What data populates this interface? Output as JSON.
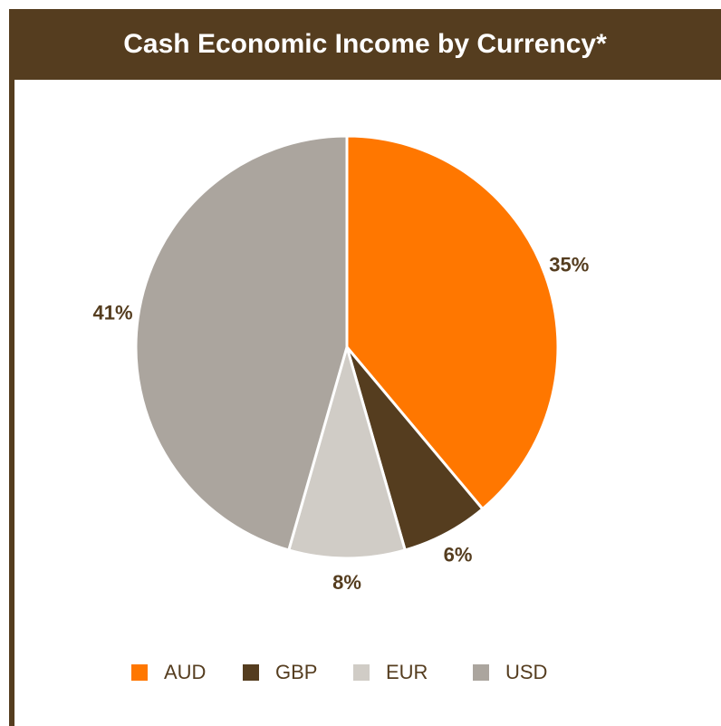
{
  "chart_data": {
    "type": "pie",
    "title": "Cash Economic Income by Currency*",
    "categories": [
      "AUD",
      "GBP",
      "EUR",
      "USD"
    ],
    "values": [
      35,
      6,
      8,
      41
    ],
    "value_labels": [
      "35%",
      "6%",
      "8%",
      "41%"
    ],
    "colors": [
      "#ff7700",
      "#553d1f",
      "#d0ccc6",
      "#aba59e"
    ],
    "legend": "bottom"
  }
}
